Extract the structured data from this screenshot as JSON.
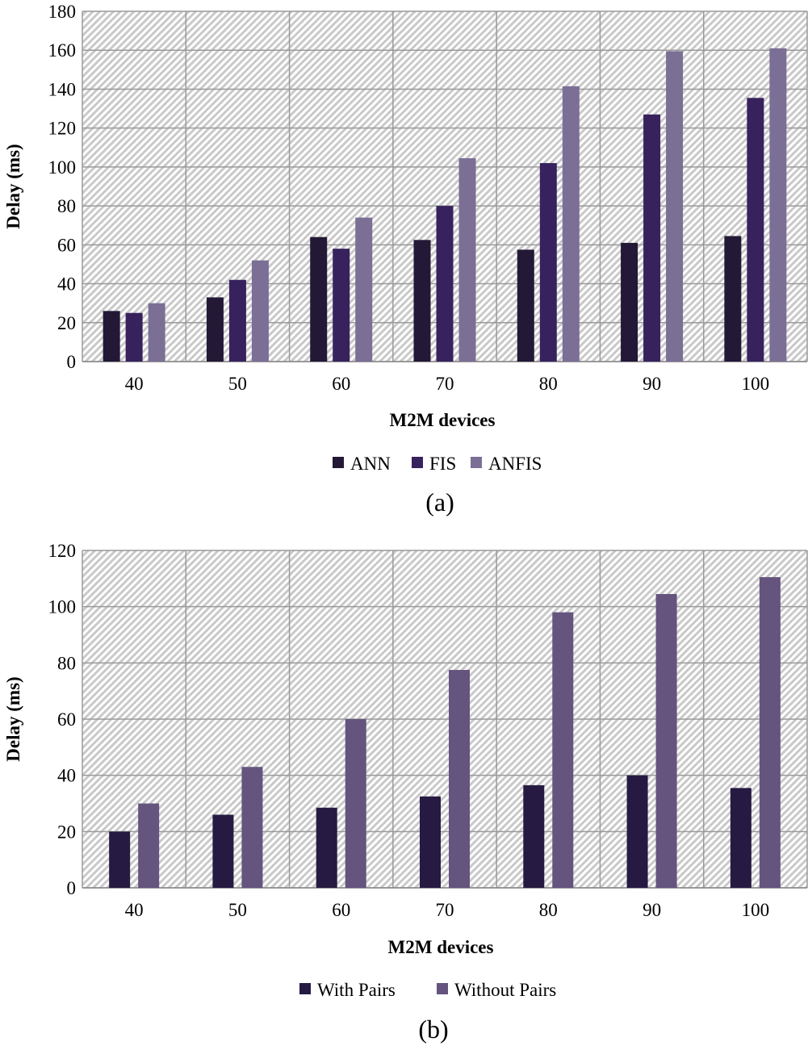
{
  "chart_data": [
    {
      "type": "bar",
      "title": "",
      "caption": "(a)",
      "xlabel": "M2M devices",
      "ylabel": "Delay (ms)",
      "ylim": [
        0,
        180
      ],
      "yticks": [
        0,
        20,
        40,
        60,
        80,
        100,
        120,
        140,
        160,
        180
      ],
      "grid": true,
      "legend": "bottom",
      "categories": [
        "40",
        "50",
        "60",
        "70",
        "80",
        "90",
        "100"
      ],
      "series": [
        {
          "name": "ANN",
          "color": "#231836",
          "values": [
            26,
            33,
            64,
            62.5,
            57.5,
            61,
            64.5
          ]
        },
        {
          "name": "FIS",
          "color": "#37225e",
          "values": [
            25,
            42,
            58,
            80,
            102,
            127,
            135.5
          ]
        },
        {
          "name": "ANFIS",
          "color": "#7c6f96",
          "values": [
            30,
            52,
            74,
            104.5,
            141.5,
            159.5,
            161
          ]
        }
      ]
    },
    {
      "type": "bar",
      "title": "",
      "caption": "(b)",
      "xlabel": "M2M devices",
      "ylabel": "Delay (ms)",
      "ylim": [
        0,
        120
      ],
      "yticks": [
        0,
        20,
        40,
        60,
        80,
        100,
        120
      ],
      "grid": true,
      "legend": "bottom",
      "categories": [
        "40",
        "50",
        "60",
        "70",
        "80",
        "90",
        "100"
      ],
      "series": [
        {
          "name": "With Pairs",
          "color": "#261a42",
          "values": [
            20,
            26,
            28.5,
            32.5,
            36.5,
            40,
            35.5
          ]
        },
        {
          "name": "Without Pairs",
          "color": "#64547e",
          "values": [
            30,
            43,
            60,
            77.5,
            98,
            104.5,
            110.5
          ]
        }
      ]
    }
  ]
}
